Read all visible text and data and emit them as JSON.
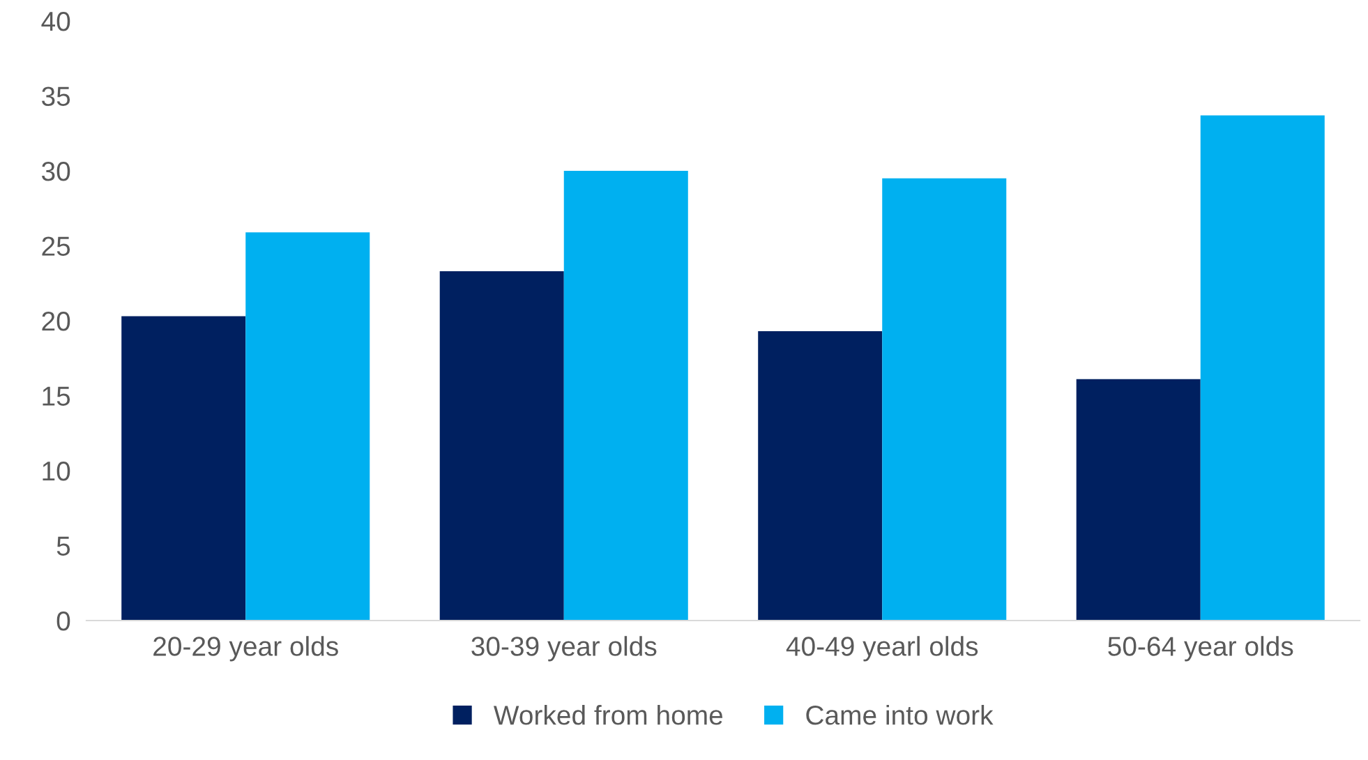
{
  "chart_data": {
    "type": "bar",
    "categories": [
      "20-29 year olds",
      "30-39 year olds",
      "40-49 yearl olds",
      "50-64 year olds"
    ],
    "series": [
      {
        "name": "Worked from home",
        "color": "#002060",
        "values": [
          20.3,
          23.3,
          19.3,
          16.1
        ]
      },
      {
        "name": "Came into work",
        "color": "#00b0f0",
        "values": [
          25.9,
          30.0,
          29.5,
          33.7
        ]
      }
    ],
    "ylim": [
      0,
      40
    ],
    "yticks": [
      0,
      5,
      10,
      15,
      20,
      25,
      30,
      35,
      40
    ],
    "grid": false,
    "legend": "bottom"
  }
}
